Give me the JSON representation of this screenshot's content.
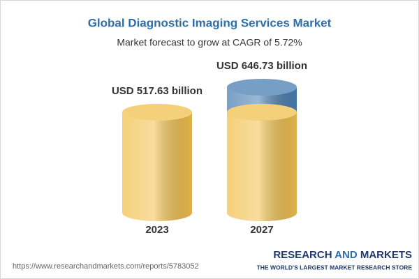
{
  "chart_data": {
    "type": "cylinder",
    "title": "Global Diagnostic Imaging Services Market",
    "subtitle": "Market forecast to grow at CAGR of 5.72%",
    "categories": [
      "2023",
      "2027"
    ],
    "values": [
      517.63,
      646.73
    ],
    "value_labels": [
      "USD 517.63 billion",
      "USD 646.73 billion"
    ],
    "base_color": "#f2c14e",
    "growth_color": "#4a7fb3"
  },
  "footer": {
    "source_url": "https://www.researchandmarkets.com/reports/5783052",
    "logo": {
      "words": [
        "RESEARCH",
        "AND",
        "MARKETS"
      ],
      "tagline": "THE WORLD'S LARGEST MARKET RESEARCH STORE"
    }
  }
}
